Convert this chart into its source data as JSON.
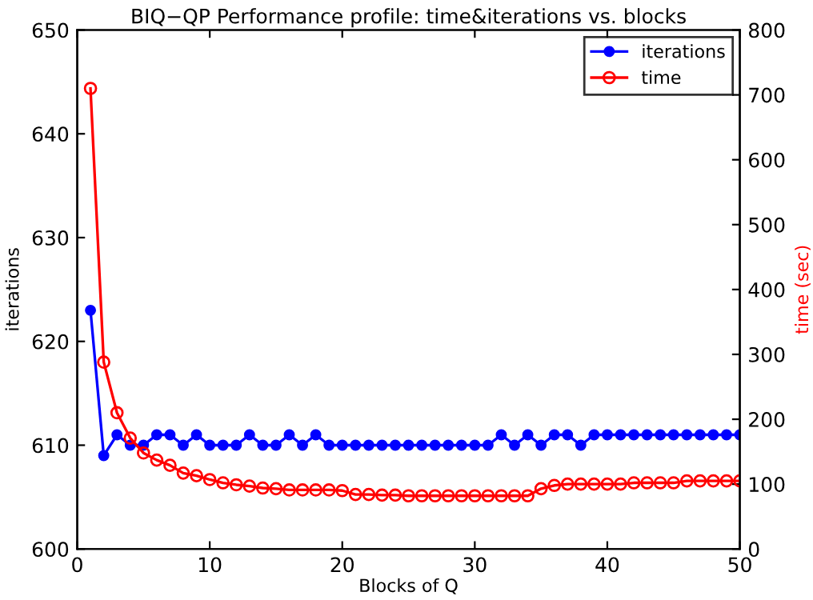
{
  "chart_data": {
    "type": "line",
    "title": "BIQ−QP Performance profile: time&iterations vs. blocks",
    "xlabel": "Blocks of Q",
    "ylabel": "iterations",
    "y2label": "time (sec)",
    "x": [
      1,
      2,
      3,
      4,
      5,
      6,
      7,
      8,
      9,
      10,
      11,
      12,
      13,
      14,
      15,
      16,
      17,
      18,
      19,
      20,
      21,
      22,
      23,
      24,
      25,
      26,
      27,
      28,
      29,
      30,
      31,
      32,
      33,
      34,
      35,
      36,
      37,
      38,
      39,
      40,
      41,
      42,
      43,
      44,
      45,
      46,
      47,
      48,
      49,
      50
    ],
    "series": [
      {
        "name": "iterations",
        "color": "#0000ff",
        "marker": "circle",
        "values": [
          623,
          609,
          611,
          610,
          610,
          611,
          611,
          610,
          611,
          610,
          610,
          610,
          611,
          610,
          610,
          611,
          610,
          611,
          610,
          610,
          610,
          610,
          610,
          610,
          610,
          610,
          610,
          610,
          610,
          610,
          610,
          611,
          610,
          611,
          610,
          611,
          611,
          610,
          611,
          611,
          611,
          611,
          611,
          611,
          611,
          611,
          611,
          611,
          611,
          611
        ]
      },
      {
        "name": "time",
        "color": "#ff0000",
        "marker": "open_circle",
        "axis": "y2",
        "values": [
          710,
          288,
          210,
          171,
          148,
          137,
          129,
          117,
          113,
          107,
          102,
          99,
          97,
          94,
          93,
          91,
          91,
          91,
          91,
          90,
          84,
          84,
          83,
          83,
          82,
          82,
          82,
          82,
          82,
          82,
          82,
          82,
          82,
          82,
          93,
          98,
          100,
          100,
          100,
          100,
          100,
          102,
          102,
          102,
          102,
          105,
          105,
          105,
          105,
          105
        ]
      }
    ],
    "xlim": [
      0,
      50
    ],
    "xticks": [
      0,
      10,
      20,
      30,
      40,
      50
    ],
    "ylim": [
      600,
      650
    ],
    "yticks": [
      600,
      610,
      620,
      630,
      640,
      650
    ],
    "y2lim": [
      0,
      800
    ],
    "y2ticks": [
      0,
      100,
      200,
      300,
      400,
      500,
      600,
      700,
      800
    ],
    "grid": false,
    "legend": "top right"
  }
}
